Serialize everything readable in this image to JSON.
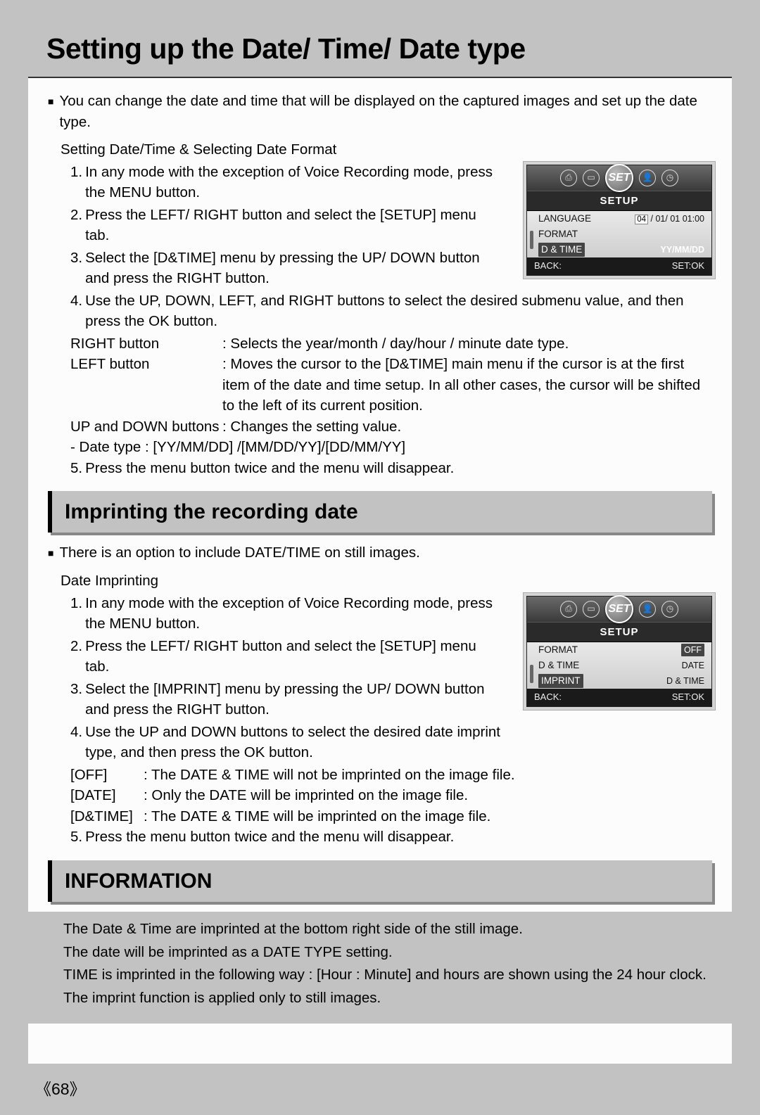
{
  "page_title": "Setting up the Date/ Time/ Date type",
  "page_number": "68",
  "intro_bullet": "■",
  "intro_text": "You can change the date and time that will be displayed on the captured images and set up the date type.",
  "section1_head": "Setting Date/Time & Selecting Date Format",
  "s1_step1": "In any mode with the exception of Voice Recording mode, press the MENU button.",
  "s1_step2": "Press the LEFT/ RIGHT button and select the [SETUP] menu tab.",
  "s1_step3": "Select the [D&TIME] menu by pressing the UP/ DOWN button and press the RIGHT button.",
  "s1_step4": "Use the UP, DOWN, LEFT, and RIGHT buttons to select the desired submenu value, and then press the OK button.",
  "s1_right_btn_lbl": "RIGHT button",
  "s1_right_btn_desc": ": Selects the year/month / day/hour / minute date type.",
  "s1_left_btn_lbl": "LEFT button",
  "s1_left_btn_desc": ": Moves the cursor to the [D&TIME] main menu if the cursor is at the first item of the date and time setup. In all other cases, the cursor will be shifted to the left of its current position.",
  "s1_updown_lbl": "UP and DOWN buttons",
  "s1_updown_desc": ": Changes the setting value.",
  "s1_datetype": "- Date type : [YY/MM/DD] /[MM/DD/YY]/[DD/MM/YY]",
  "s1_step5": "Press the menu button twice and the menu will disappear.",
  "section2_title": "Imprinting the recording date",
  "section2_intro": "There is an option to include DATE/TIME on still images.",
  "section2_head": "Date Imprinting",
  "s2_step1": "In any mode with the exception of Voice Recording mode, press the MENU button.",
  "s2_step2": "Press the LEFT/ RIGHT button and select the [SETUP] menu tab.",
  "s2_step3": "Select the [IMPRINT] menu by pressing the UP/ DOWN button and press the RIGHT button.",
  "s2_step4": "Use the UP and DOWN buttons to select the desired date imprint type, and then press the OK button.",
  "s2_off_lbl": "[OFF]",
  "s2_off_desc": ": The DATE & TIME will not be imprinted on the image file.",
  "s2_date_lbl": "[DATE]",
  "s2_date_desc": ": Only the DATE will be imprinted on the image file.",
  "s2_dtime_lbl": "[D&TIME]",
  "s2_dtime_desc": ": The DATE & TIME will be imprinted on the image file.",
  "s2_step5": "Press the menu button twice and the menu will disappear.",
  "section3_title": "INFORMATION",
  "info_l1": "The Date & Time are imprinted at the bottom right side of the still image.",
  "info_l2": "The date will be imprinted as a DATE TYPE setting.",
  "info_l3": "TIME is imprinted in the following way : [Hour : Minute] and hours are shown using the 24 hour clock.",
  "info_l4": "The imprint function is applied only to still images.",
  "lcd_set_label": "SET",
  "lcd_setup_label": "SETUP",
  "lcd_back": "BACK:",
  "lcd_setok": "SET:OK",
  "lcd1_row1_l": "LANGUAGE",
  "lcd1_row1_r_hl": "04",
  "lcd1_row1_r_rest": " / 01/ 01 01:00",
  "lcd1_row2_l": "FORMAT",
  "lcd1_row3_l": "D & TIME",
  "lcd1_row3_r": "YY/MM/DD",
  "lcd2_row1_l": "FORMAT",
  "lcd2_row1_r": "OFF",
  "lcd2_row2_l": "D & TIME",
  "lcd2_row2_r": "DATE",
  "lcd2_row3_l": "IMPRINT",
  "lcd2_row3_r": "D & TIME"
}
